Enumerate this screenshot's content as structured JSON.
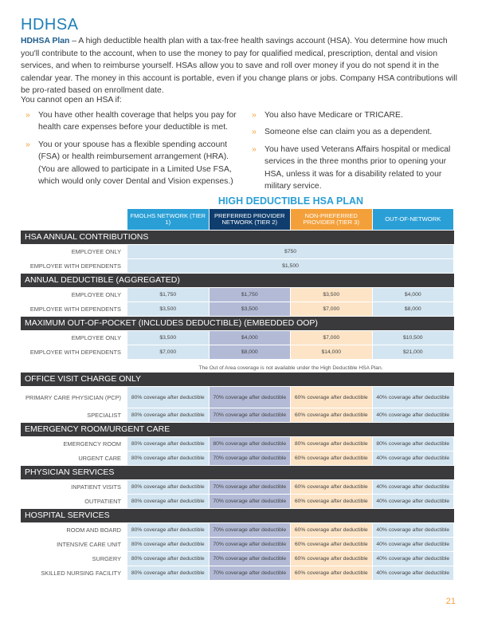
{
  "title": "HDHSA",
  "intro": {
    "lead": "HDHSA Plan",
    "text": " – A high deductible health plan with a tax-free health savings account (HSA). You determine how much you'll contribute to the account, when to use the money to pay for qualified medical, prescription, dental and vision services, and when to reimburse yourself. HSAs allow you to save and roll over money if you do not spend it in the calendar year. The money in this account is portable, even if you change plans or jobs. Company HSA contributions will be pro-rated based on enrollment date."
  },
  "cannot": "You cannot open an HSA if:",
  "bullets_left": [
    "You have other health coverage that helps you pay for health care expenses before your deductible is met.",
    "You or your spouse has a flexible spending account (FSA) or health reimbursement arrangement (HRA). (You are allowed to participate in a Limited Use FSA, which would only cover Dental and Vision expenses.)"
  ],
  "bullets_right": [
    "You also have Medicare or TRICARE.",
    "Someone else can claim you as a dependent.",
    "You have used Veterans Affairs hospital or medical services in the three months prior to opening your HSA, unless it was for a disability related to your military service."
  ],
  "plan_title": "HIGH DEDUCTIBLE HSA PLAN",
  "colors": {
    "tier1": "#2a9fd6",
    "tier2": "#0f3d6e",
    "tier3": "#f4a03a",
    "oon": "#2a9fd6"
  },
  "columns": [
    "FMOLHS NETWORK (TIER 1)",
    "PREFERRED PROVIDER NETWORK (TIER 2)",
    "NON-PREFERRED PROVIDER (TIER 3)",
    "OUT-OF-NETWORK"
  ],
  "sections": [
    {
      "title": "HSA ANNUAL CONTRIBUTIONS",
      "rows": [
        {
          "label": "EMPLOYEE ONLY",
          "span": "$750"
        },
        {
          "label": "EMPLOYEE WITH DEPENDENTS",
          "span": "$1,500"
        }
      ]
    },
    {
      "title": "ANNUAL DEDUCTIBLE (AGGREGATED)",
      "rows": [
        {
          "label": "EMPLOYEE ONLY",
          "values": [
            "$1,750",
            "$1,750",
            "$3,500",
            "$4,000"
          ]
        },
        {
          "label": "EMPLOYEE WITH DEPENDENTS",
          "values": [
            "$3,500",
            "$3,500",
            "$7,000",
            "$8,000"
          ]
        }
      ]
    },
    {
      "title": "MAXIMUM OUT-OF-POCKET (INCLUDES DEDUCTIBLE) (EMBEDDED OOP)",
      "rows": [
        {
          "label": "EMPLOYEE ONLY",
          "values": [
            "$3,500",
            "$4,000",
            "$7,000",
            "$10,500"
          ]
        },
        {
          "label": "EMPLOYEE WITH DEPENDENTS",
          "values": [
            "$7,000",
            "$8,000",
            "$14,000",
            "$21,000"
          ]
        }
      ],
      "note": "The Out of Area coverage is not available under the High Deductible HSA Plan."
    },
    {
      "title": "OFFICE VISIT CHARGE ONLY",
      "rows": [
        {
          "label": "PRIMARY CARE PHYSICIAN (PCP)",
          "values": [
            "80% coverage after deductible",
            "70% coverage after deductible",
            "60% coverage after deductible",
            "40% coverage after deductible"
          ]
        },
        {
          "label": "SPECIALIST",
          "values": [
            "80% coverage after deductible",
            "70% coverage after deductible",
            "60% coverage after deductible",
            "40% coverage after deductible"
          ]
        }
      ]
    },
    {
      "title": "EMERGENCY ROOM/URGENT CARE",
      "rows": [
        {
          "label": "EMERGENCY ROOM",
          "values": [
            "80% coverage after deductible",
            "80% coverage after deductible",
            "80% coverage after deductible",
            "80% coverage after deductible"
          ]
        },
        {
          "label": "URGENT CARE",
          "values": [
            "80% coverage after deductible",
            "70% coverage after deductible",
            "60% coverage after deductible",
            "40% coverage after deductible"
          ]
        }
      ]
    },
    {
      "title": "PHYSICIAN SERVICES",
      "rows": [
        {
          "label": "INPATIENT VISITS",
          "values": [
            "80% coverage after deductible",
            "70% coverage after deductible",
            "60% coverage after deductible",
            "40% coverage after deductible"
          ]
        },
        {
          "label": "OUTPATIENT",
          "values": [
            "80% coverage after deductible",
            "70% coverage after deductible",
            "60% coverage after deductible",
            "40% coverage after deductible"
          ]
        }
      ]
    },
    {
      "title": "HOSPITAL SERVICES",
      "rows": [
        {
          "label": "ROOM AND BOARD",
          "values": [
            "80% coverage after deductible",
            "70% coverage after deductible",
            "60% coverage after deductible",
            "40% coverage after deductible"
          ]
        },
        {
          "label": "INTENSIVE CARE UNIT",
          "values": [
            "80% coverage after deductible",
            "70% coverage after deductible",
            "60% coverage after deductible",
            "40% coverage after deductible"
          ]
        },
        {
          "label": "SURGERY",
          "values": [
            "80% coverage after deductible",
            "70% coverage after deductible",
            "60% coverage after deductible",
            "40% coverage after deductible"
          ]
        },
        {
          "label": "SKILLED NURSING FACILITY",
          "values": [
            "80% coverage after deductible",
            "70% coverage after deductible",
            "60% coverage after deductible",
            "40% coverage after deductible"
          ]
        }
      ]
    }
  ],
  "page_number": "21"
}
